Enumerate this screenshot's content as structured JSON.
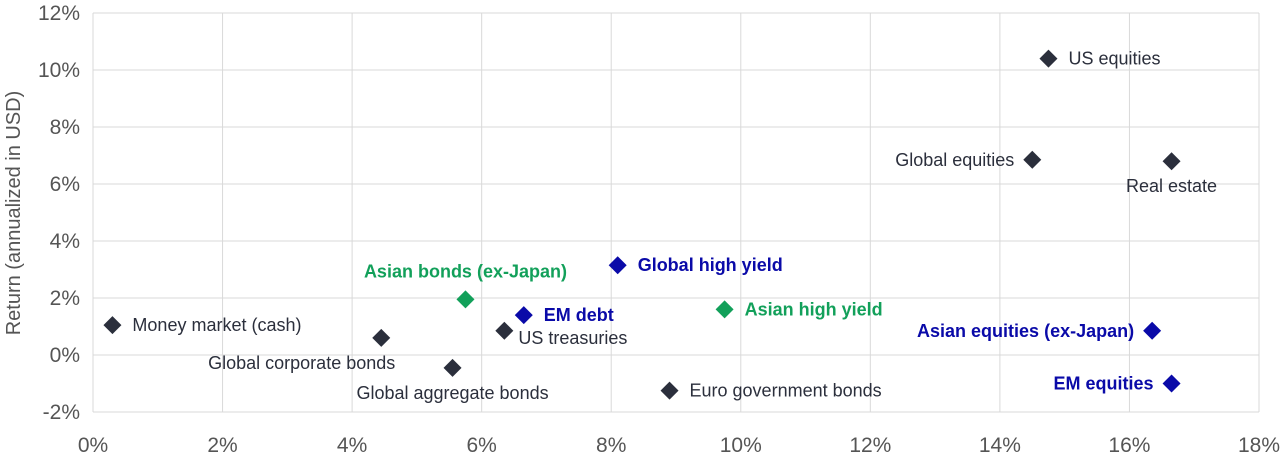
{
  "chart_data": {
    "type": "scatter",
    "ylabel": "Return (annualized in  USD)",
    "xlabel": "",
    "xlim": [
      0,
      18
    ],
    "ylim": [
      -2,
      12
    ],
    "x_ticks": [
      {
        "value": 0,
        "label": "0%"
      },
      {
        "value": 2,
        "label": "2%"
      },
      {
        "value": 4,
        "label": "4%"
      },
      {
        "value": 6,
        "label": "6%"
      },
      {
        "value": 8,
        "label": "8%"
      },
      {
        "value": 10,
        "label": "10%"
      },
      {
        "value": 12,
        "label": "12%"
      },
      {
        "value": 14,
        "label": "14%"
      },
      {
        "value": 16,
        "label": "16%"
      },
      {
        "value": 18,
        "label": "18%"
      }
    ],
    "y_ticks": [
      {
        "value": -2,
        "label": "-2%"
      },
      {
        "value": 0,
        "label": "0%"
      },
      {
        "value": 2,
        "label": "2%"
      },
      {
        "value": 4,
        "label": "4%"
      },
      {
        "value": 6,
        "label": "6%"
      },
      {
        "value": 8,
        "label": "8%"
      },
      {
        "value": 10,
        "label": "10%"
      },
      {
        "value": 12,
        "label": "12%"
      }
    ],
    "grid": true,
    "colors": {
      "dark": "#2b2f3c",
      "blue": "#0a0aa8",
      "green": "#12a05a"
    },
    "points": [
      {
        "name": "Money market (cash)",
        "x": 0.3,
        "y": 1.05,
        "color": "dark",
        "label_pos": "right"
      },
      {
        "name": "Global corporate bonds",
        "x": 4.45,
        "y": 0.6,
        "color": "dark",
        "label_pos": "below-left"
      },
      {
        "name": "Global aggregate bonds",
        "x": 5.55,
        "y": -0.45,
        "color": "dark",
        "label_pos": "below"
      },
      {
        "name": "Asian bonds (ex-Japan)",
        "x": 5.75,
        "y": 1.95,
        "color": "green",
        "label_pos": "above"
      },
      {
        "name": "US treasuries",
        "x": 6.35,
        "y": 0.85,
        "color": "dark",
        "label_pos": "below-right"
      },
      {
        "name": "EM debt",
        "x": 6.65,
        "y": 1.4,
        "color": "blue",
        "label_pos": "right"
      },
      {
        "name": "Global high yield",
        "x": 8.1,
        "y": 3.15,
        "color": "blue",
        "label_pos": "right"
      },
      {
        "name": "Asian high yield",
        "x": 9.75,
        "y": 1.6,
        "color": "green",
        "label_pos": "right"
      },
      {
        "name": "Euro government bonds",
        "x": 8.9,
        "y": -1.25,
        "color": "dark",
        "label_pos": "right"
      },
      {
        "name": "Global equities",
        "x": 14.5,
        "y": 6.85,
        "color": "dark",
        "label_pos": "left"
      },
      {
        "name": "US equities",
        "x": 14.75,
        "y": 10.4,
        "color": "dark",
        "label_pos": "right"
      },
      {
        "name": "Real estate",
        "x": 16.65,
        "y": 6.8,
        "color": "dark",
        "label_pos": "below"
      },
      {
        "name": "Asian equities (ex-Japan)",
        "x": 16.35,
        "y": 0.85,
        "color": "blue",
        "label_pos": "left"
      },
      {
        "name": "EM equities",
        "x": 16.65,
        "y": -1.0,
        "color": "blue",
        "label_pos": "left"
      }
    ]
  }
}
